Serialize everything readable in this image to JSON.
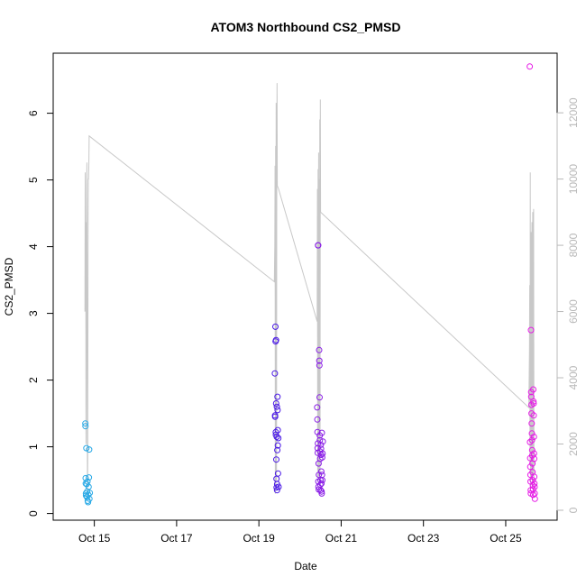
{
  "chart_data": {
    "type": "scatter",
    "title": "ATOM3 Northbound CS2_PMSD",
    "xlabel": "Date",
    "ylabel": "CS2_PMSD",
    "x_axis": {
      "type": "date",
      "range": [
        "2023-10-14T00:00",
        "2023-10-26T06:00"
      ],
      "ticks": [
        {
          "date": "2023-10-15",
          "label": "Oct 15"
        },
        {
          "date": "2023-10-17",
          "label": "Oct 17"
        },
        {
          "date": "2023-10-19",
          "label": "Oct 19"
        },
        {
          "date": "2023-10-21",
          "label": "Oct 21"
        },
        {
          "date": "2023-10-23",
          "label": "Oct 23"
        },
        {
          "date": "2023-10-25",
          "label": "Oct 25"
        }
      ]
    },
    "y_axis_left": {
      "range": [
        -0.1,
        6.9
      ],
      "ticks": [
        {
          "value": 0,
          "label": "0"
        },
        {
          "value": 1,
          "label": "1"
        },
        {
          "value": 2,
          "label": "2"
        },
        {
          "value": 3,
          "label": "3"
        },
        {
          "value": 4,
          "label": "4"
        },
        {
          "value": 5,
          "label": "5"
        },
        {
          "value": 6,
          "label": "6"
        }
      ]
    },
    "y_axis_right": {
      "range": [
        -300,
        13800
      ],
      "ticks": [
        {
          "value": 0,
          "label": "0"
        },
        {
          "value": 2000,
          "label": "2000"
        },
        {
          "value": 4000,
          "label": "4000"
        },
        {
          "value": 6000,
          "label": "6000"
        },
        {
          "value": 8000,
          "label": "8000"
        },
        {
          "value": 10000,
          "label": "10000"
        },
        {
          "value": 12000,
          "label": "12000"
        }
      ]
    },
    "series": [
      {
        "axis": "left",
        "style": "points",
        "color": "#29a9e6",
        "points": [
          [
            "2023-10-14T18:45",
            1.35
          ],
          [
            "2023-10-14T18:50",
            1.31
          ],
          [
            "2023-10-14T18:55",
            0.53
          ],
          [
            "2023-10-14T19:00",
            0.45
          ],
          [
            "2023-10-14T19:05",
            0.3
          ],
          [
            "2023-10-14T19:10",
            0.27
          ],
          [
            "2023-10-14T19:20",
            0.98
          ],
          [
            "2023-10-14T19:30",
            0.44
          ],
          [
            "2023-10-14T19:40",
            0.25
          ],
          [
            "2023-10-14T19:50",
            0.33
          ],
          [
            "2023-10-14T20:00",
            0.48
          ],
          [
            "2023-10-14T20:10",
            0.19
          ],
          [
            "2023-10-14T20:20",
            0.17
          ],
          [
            "2023-10-14T20:30",
            0.28
          ],
          [
            "2023-10-14T20:40",
            0.4
          ],
          [
            "2023-10-14T20:50",
            0.54
          ],
          [
            "2023-10-14T21:00",
            0.96
          ],
          [
            "2023-10-14T21:10",
            0.22
          ],
          [
            "2023-10-14T21:20",
            0.31
          ]
        ]
      },
      {
        "axis": "left",
        "style": "points",
        "color": "#4a19e6",
        "points": [
          [
            "2023-10-19T09:20",
            2.1
          ],
          [
            "2023-10-19T09:25",
            1.47
          ],
          [
            "2023-10-19T09:30",
            1.45
          ],
          [
            "2023-10-19T09:40",
            2.8
          ],
          [
            "2023-10-19T09:45",
            2.58
          ],
          [
            "2023-10-19T09:50",
            1.22
          ],
          [
            "2023-10-19T09:55",
            1.18
          ],
          [
            "2023-10-19T10:00",
            2.6
          ],
          [
            "2023-10-19T10:05",
            1.65
          ],
          [
            "2023-10-19T10:10",
            0.81
          ],
          [
            "2023-10-19T10:15",
            0.52
          ],
          [
            "2023-10-19T10:20",
            0.39
          ],
          [
            "2023-10-19T10:25",
            1.15
          ],
          [
            "2023-10-19T10:30",
            1.6
          ],
          [
            "2023-10-19T10:35",
            0.35
          ],
          [
            "2023-10-19T10:40",
            0.44
          ],
          [
            "2023-10-19T10:45",
            0.95
          ],
          [
            "2023-10-19T10:50",
            1.75
          ],
          [
            "2023-10-19T10:55",
            1.55
          ],
          [
            "2023-10-19T11:00",
            1.25
          ],
          [
            "2023-10-19T11:05",
            1.02
          ],
          [
            "2023-10-19T11:10",
            0.6
          ],
          [
            "2023-10-19T11:20",
            1.13
          ],
          [
            "2023-10-19T11:30",
            0.4
          ]
        ]
      },
      {
        "axis": "left",
        "style": "points",
        "color": "#8a1ee6",
        "points": [
          [
            "2023-10-20T10:00",
            1.59
          ],
          [
            "2023-10-20T10:05",
            1.41
          ],
          [
            "2023-10-20T10:10",
            1.22
          ],
          [
            "2023-10-20T10:15",
            0.98
          ],
          [
            "2023-10-20T10:20",
            0.91
          ],
          [
            "2023-10-20T10:25",
            1.05
          ],
          [
            "2023-10-20T10:30",
            4.02
          ],
          [
            "2023-10-20T10:35",
            4.02
          ],
          [
            "2023-10-20T10:40",
            0.48
          ],
          [
            "2023-10-20T10:45",
            0.4
          ],
          [
            "2023-10-20T10:50",
            0.75
          ],
          [
            "2023-10-20T10:55",
            0.36
          ],
          [
            "2023-10-20T11:00",
            0.58
          ],
          [
            "2023-10-20T11:10",
            2.45
          ],
          [
            "2023-10-20T11:15",
            2.29
          ],
          [
            "2023-10-20T11:20",
            2.22
          ],
          [
            "2023-10-20T11:25",
            1.74
          ],
          [
            "2023-10-20T11:30",
            1.17
          ],
          [
            "2023-10-20T11:35",
            1.1
          ],
          [
            "2023-10-20T11:40",
            0.93
          ],
          [
            "2023-10-20T11:45",
            0.82
          ],
          [
            "2023-10-20T11:50",
            0.43
          ],
          [
            "2023-10-20T11:55",
            0.5
          ],
          [
            "2023-10-20T12:00",
            0.35
          ],
          [
            "2023-10-20T12:10",
            1.03
          ],
          [
            "2023-10-20T12:15",
            0.97
          ],
          [
            "2023-10-20T12:20",
            0.88
          ],
          [
            "2023-10-20T12:25",
            0.63
          ],
          [
            "2023-10-20T12:30",
            0.45
          ],
          [
            "2023-10-20T12:35",
            0.33
          ],
          [
            "2023-10-20T12:40",
            0.3
          ],
          [
            "2023-10-20T12:45",
            1.21
          ],
          [
            "2023-10-20T12:50",
            0.58
          ],
          [
            "2023-10-20T12:55",
            0.84
          ],
          [
            "2023-10-20T13:00",
            0.5
          ],
          [
            "2023-10-20T13:10",
            0.9
          ],
          [
            "2023-10-20T13:20",
            1.08
          ]
        ]
      },
      {
        "axis": "left",
        "style": "points",
        "color": "#e619e6",
        "points": [
          [
            "2023-10-25T14:00",
            6.7
          ],
          [
            "2023-10-25T14:10",
            1.07
          ],
          [
            "2023-10-25T14:15",
            0.83
          ],
          [
            "2023-10-25T14:20",
            0.7
          ],
          [
            "2023-10-25T14:25",
            0.58
          ],
          [
            "2023-10-25T14:30",
            0.48
          ],
          [
            "2023-10-25T14:35",
            0.35
          ],
          [
            "2023-10-25T14:40",
            0.3
          ],
          [
            "2023-10-25T14:45",
            2.75
          ],
          [
            "2023-10-25T14:50",
            1.82
          ],
          [
            "2023-10-25T14:55",
            1.75
          ],
          [
            "2023-10-25T15:00",
            1.63
          ],
          [
            "2023-10-25T15:05",
            1.5
          ],
          [
            "2023-10-25T15:10",
            1.35
          ],
          [
            "2023-10-25T15:15",
            1.2
          ],
          [
            "2023-10-25T15:20",
            1.1
          ],
          [
            "2023-10-25T15:25",
            0.95
          ],
          [
            "2023-10-25T15:30",
            0.87
          ],
          [
            "2023-10-25T15:35",
            0.75
          ],
          [
            "2023-10-25T15:40",
            0.62
          ],
          [
            "2023-10-25T15:45",
            0.5
          ],
          [
            "2023-10-25T15:50",
            0.42
          ],
          [
            "2023-10-25T15:55",
            0.36
          ],
          [
            "2023-10-25T16:00",
            0.28
          ],
          [
            "2023-10-25T16:05",
            1.86
          ],
          [
            "2023-10-25T16:10",
            1.68
          ],
          [
            "2023-10-25T16:15",
            1.65
          ],
          [
            "2023-10-25T16:20",
            1.47
          ],
          [
            "2023-10-25T16:25",
            1.15
          ],
          [
            "2023-10-25T16:30",
            0.9
          ],
          [
            "2023-10-25T16:35",
            0.82
          ],
          [
            "2023-10-25T16:40",
            0.55
          ],
          [
            "2023-10-25T16:45",
            0.45
          ],
          [
            "2023-10-25T16:50",
            0.4
          ],
          [
            "2023-10-25T16:55",
            0.3
          ],
          [
            "2023-10-25T17:00",
            0.22
          ]
        ]
      },
      {
        "axis": "right",
        "style": "line",
        "color": "#c8c8c8",
        "points": [
          [
            "2023-10-14T18:30",
            6000
          ],
          [
            "2023-10-14T18:40",
            10200
          ],
          [
            "2023-10-14T18:50",
            6600
          ],
          [
            "2023-10-14T19:00",
            8700
          ],
          [
            "2023-10-14T19:10",
            2000
          ],
          [
            "2023-10-14T19:20",
            6500
          ],
          [
            "2023-10-14T19:30",
            9800
          ],
          [
            "2023-10-14T19:40",
            10500
          ],
          [
            "2023-10-14T19:50",
            4000
          ],
          [
            "2023-10-14T20:00",
            400
          ],
          [
            "2023-10-14T20:10",
            1400
          ],
          [
            "2023-10-14T20:20",
            8000
          ],
          [
            "2023-10-14T20:30",
            10000
          ],
          [
            "2023-10-14T20:40",
            10000
          ],
          [
            "2023-10-14T20:50",
            10500
          ],
          [
            "2023-10-14T21:00",
            11300
          ],
          [
            "2023-10-19T09:00",
            6900
          ],
          [
            "2023-10-19T09:15",
            8000
          ],
          [
            "2023-10-19T09:25",
            10400
          ],
          [
            "2023-10-19T09:35",
            500
          ],
          [
            "2023-10-19T09:45",
            11000
          ],
          [
            "2023-10-19T09:55",
            600
          ],
          [
            "2023-10-19T10:05",
            12300
          ],
          [
            "2023-10-19T10:15",
            900
          ],
          [
            "2023-10-19T10:25",
            9800
          ],
          [
            "2023-10-19T10:35",
            12900
          ],
          [
            "2023-10-19T10:45",
            9800
          ],
          [
            "2023-10-19T11:30",
            9700
          ],
          [
            "2023-10-20T10:00",
            5700
          ],
          [
            "2023-10-20T10:10",
            9700
          ],
          [
            "2023-10-20T10:20",
            1000
          ],
          [
            "2023-10-20T10:30",
            10300
          ],
          [
            "2023-10-20T10:40",
            1200
          ],
          [
            "2023-10-20T10:50",
            10800
          ],
          [
            "2023-10-20T11:00",
            900
          ],
          [
            "2023-10-20T11:10",
            10000
          ],
          [
            "2023-10-20T11:20",
            1100
          ],
          [
            "2023-10-20T11:30",
            11800
          ],
          [
            "2023-10-20T11:40",
            800
          ],
          [
            "2023-10-20T11:50",
            12400
          ],
          [
            "2023-10-20T12:00",
            9000
          ],
          [
            "2023-10-25T13:30",
            3100
          ],
          [
            "2023-10-25T13:50",
            4800
          ],
          [
            "2023-10-25T14:00",
            6800
          ],
          [
            "2023-10-25T14:10",
            1400
          ],
          [
            "2023-10-25T14:20",
            10200
          ],
          [
            "2023-10-25T14:30",
            600
          ],
          [
            "2023-10-25T14:45",
            8400
          ],
          [
            "2023-10-25T15:00",
            1000
          ],
          [
            "2023-10-25T15:15",
            8700
          ],
          [
            "2023-10-25T15:30",
            700
          ],
          [
            "2023-10-25T15:45",
            9000
          ],
          [
            "2023-10-25T16:00",
            1100
          ],
          [
            "2023-10-25T16:15",
            9100
          ],
          [
            "2023-10-25T16:30",
            500
          ]
        ]
      }
    ]
  }
}
